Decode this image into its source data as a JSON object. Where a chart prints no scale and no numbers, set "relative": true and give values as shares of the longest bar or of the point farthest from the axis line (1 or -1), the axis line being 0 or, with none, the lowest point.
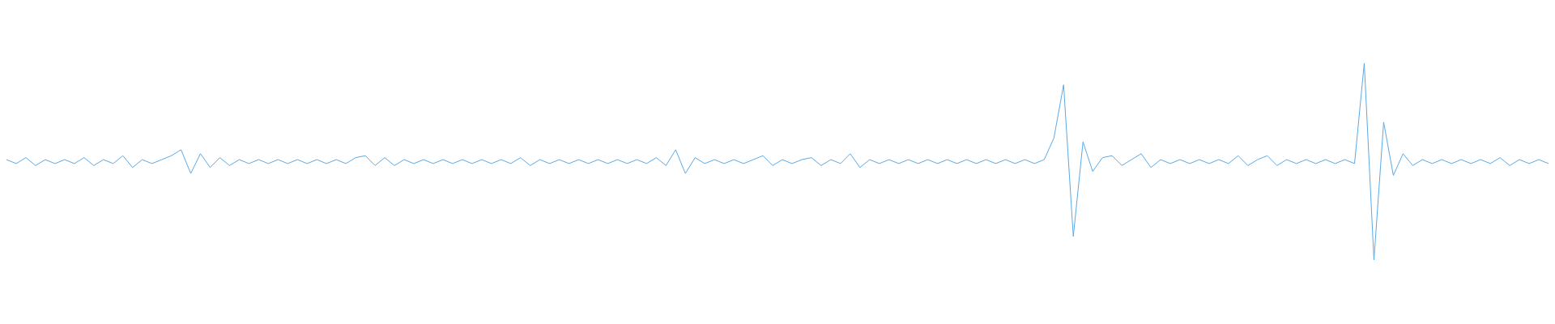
{
  "chart_data": {
    "type": "line",
    "relative": true,
    "marker": "none",
    "line_style": "solid",
    "categories": [
      null,
      null,
      null,
      null,
      null,
      null,
      null,
      null,
      null,
      null,
      null,
      null,
      null,
      null,
      null,
      null,
      null,
      null,
      null,
      null,
      null,
      null,
      null,
      null,
      null,
      null,
      null,
      null,
      null,
      null,
      null,
      null,
      null,
      null,
      null,
      null,
      null,
      null,
      null,
      null,
      null,
      null,
      null,
      null,
      null,
      null,
      null,
      null,
      null,
      null,
      null,
      null,
      null,
      null,
      null,
      null,
      null,
      null,
      null,
      null,
      null,
      null,
      null,
      null,
      null,
      null,
      null,
      null,
      null,
      null,
      null,
      null,
      null,
      null,
      null,
      null,
      null,
      null,
      null,
      null,
      null,
      null,
      null,
      null,
      null,
      null,
      null,
      null,
      null,
      null,
      null,
      null,
      null,
      null,
      null,
      null,
      null,
      null,
      null,
      null,
      null,
      null,
      null,
      null,
      null,
      null,
      null,
      null,
      null,
      null,
      null,
      null,
      null,
      null,
      null,
      null,
      null,
      null,
      null,
      null,
      null,
      null,
      null,
      null,
      null,
      null,
      null,
      null,
      null,
      null,
      null,
      null,
      null,
      null,
      null,
      null,
      null,
      null,
      null,
      null,
      null,
      null,
      null,
      null,
      null,
      null,
      null,
      null,
      null,
      null,
      null,
      null,
      null,
      null,
      null,
      null,
      null,
      null,
      null,
      null
    ],
    "series": [
      {
        "color": "#5aa9e6",
        "values": [
          0.51,
          0.49,
          0.52,
          0.48,
          0.51,
          0.49,
          0.51,
          0.49,
          0.52,
          0.48,
          0.51,
          0.49,
          0.53,
          0.47,
          0.51,
          0.49,
          0.51,
          0.53,
          0.56,
          0.44,
          0.54,
          0.47,
          0.52,
          0.48,
          0.51,
          0.49,
          0.51,
          0.49,
          0.51,
          0.49,
          0.51,
          0.49,
          0.51,
          0.49,
          0.51,
          0.49,
          0.52,
          0.53,
          0.48,
          0.52,
          0.48,
          0.51,
          0.49,
          0.51,
          0.49,
          0.51,
          0.49,
          0.51,
          0.49,
          0.51,
          0.49,
          0.51,
          0.49,
          0.52,
          0.48,
          0.51,
          0.49,
          0.51,
          0.49,
          0.51,
          0.49,
          0.51,
          0.49,
          0.51,
          0.49,
          0.51,
          0.49,
          0.52,
          0.48,
          0.56,
          0.44,
          0.52,
          0.49,
          0.51,
          0.49,
          0.51,
          0.49,
          0.51,
          0.53,
          0.48,
          0.51,
          0.49,
          0.51,
          0.52,
          0.48,
          0.51,
          0.49,
          0.54,
          0.47,
          0.51,
          0.49,
          0.51,
          0.49,
          0.51,
          0.49,
          0.51,
          0.49,
          0.51,
          0.49,
          0.51,
          0.49,
          0.51,
          0.49,
          0.51,
          0.49,
          0.51,
          0.49,
          0.51,
          0.62,
          0.89,
          0.12,
          0.6,
          0.45,
          0.52,
          0.53,
          0.48,
          0.51,
          0.54,
          0.47,
          0.51,
          0.49,
          0.51,
          0.49,
          0.51,
          0.49,
          0.51,
          0.49,
          0.53,
          0.48,
          0.51,
          0.53,
          0.48,
          0.51,
          0.49,
          0.51,
          0.49,
          0.51,
          0.49,
          0.51,
          0.49,
          1,
          0,
          0.7,
          0.43,
          0.54,
          0.48,
          0.51,
          0.49,
          0.51,
          0.49,
          0.51,
          0.49,
          0.51,
          0.49,
          0.52,
          0.48,
          0.51,
          0.49,
          0.51,
          0.49
        ]
      }
    ]
  }
}
